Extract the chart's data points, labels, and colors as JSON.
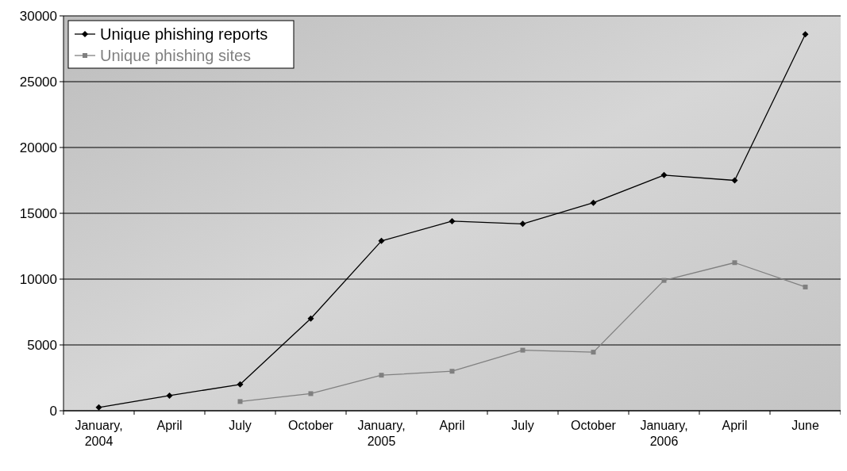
{
  "chart_data": {
    "type": "line",
    "categories": [
      "January,\n2004",
      "April",
      "July",
      "October",
      "January,\n2005",
      "April",
      "July",
      "October",
      "January,\n2006",
      "April",
      "June"
    ],
    "series": [
      {
        "name": "Unique phishing reports",
        "color": "#000000",
        "marker": "diamond",
        "values": [
          250,
          1150,
          2000,
          7000,
          12900,
          14400,
          14200,
          15800,
          17900,
          17500,
          28600
        ]
      },
      {
        "name": "Unique phishing sites",
        "color": "#808080",
        "marker": "square",
        "values": [
          null,
          null,
          700,
          1300,
          2700,
          3000,
          4600,
          4450,
          9900,
          11250,
          9400
        ]
      }
    ],
    "ylim": [
      0,
      30000
    ],
    "yticks": [
      0,
      5000,
      10000,
      15000,
      20000,
      25000,
      30000
    ],
    "grid": "y",
    "legend": "top left"
  }
}
